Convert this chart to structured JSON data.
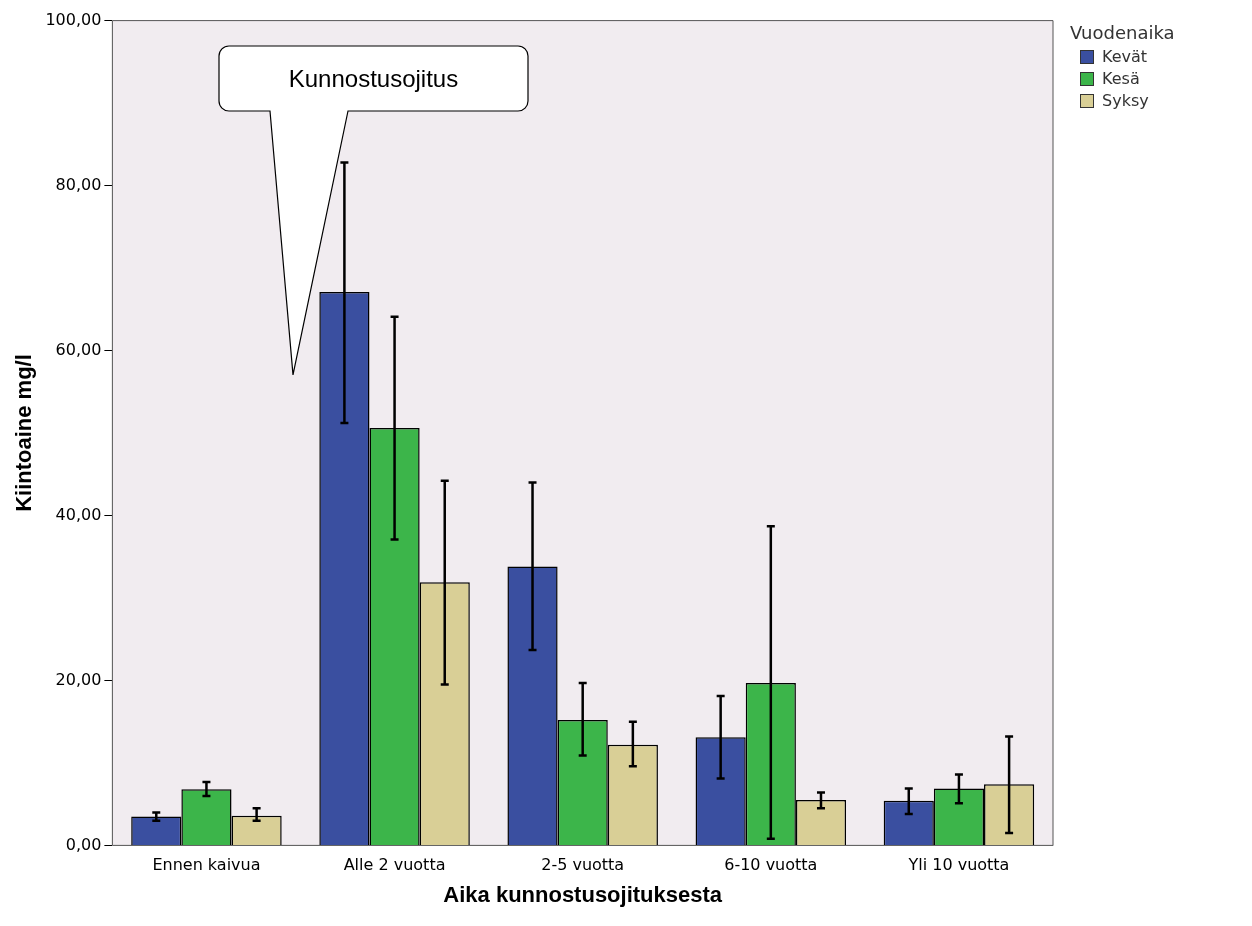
{
  "chart_data": {
    "type": "bar",
    "xlabel": "Aika kunnostusojituksesta",
    "ylabel": "Kiintoaine mg/l",
    "legend_title": "Vuodenaika",
    "categories": [
      "Ennen kaivua",
      "Alle 2 vuotta",
      "2-5 vuotta",
      "6-10 vuotta",
      "Yli 10 vuotta"
    ],
    "series": [
      {
        "name": "Kevät",
        "color": "#3a4fa0",
        "values": [
          3.5,
          67.1,
          33.8,
          13.1,
          5.4
        ],
        "errors": [
          [
            3.0,
            4.0
          ],
          [
            51.2,
            82.8
          ],
          [
            23.7,
            44.0
          ],
          [
            8.1,
            18.1
          ],
          [
            3.8,
            6.9
          ]
        ]
      },
      {
        "name": "Kesä",
        "color": "#3cb54a",
        "values": [
          6.8,
          50.6,
          15.2,
          19.7,
          6.9
        ],
        "errors": [
          [
            6.0,
            7.7
          ],
          [
            37.1,
            64.1
          ],
          [
            10.9,
            19.7
          ],
          [
            0.8,
            38.7
          ],
          [
            5.1,
            8.6
          ]
        ]
      },
      {
        "name": "Syksy",
        "color": "#d9cf96",
        "values": [
          3.6,
          31.9,
          12.2,
          5.5,
          7.4
        ],
        "errors": [
          [
            3.0,
            4.5
          ],
          [
            19.5,
            44.2
          ],
          [
            9.6,
            15.0
          ],
          [
            4.5,
            6.4
          ],
          [
            1.5,
            13.2
          ]
        ]
      }
    ],
    "ylim": [
      0,
      100
    ],
    "yticks": [
      {
        "value": 0,
        "label": "0,00"
      },
      {
        "value": 20,
        "label": "20,00"
      },
      {
        "value": 40,
        "label": "40,00"
      },
      {
        "value": 60,
        "label": "60,00"
      },
      {
        "value": 80,
        "label": "80,00"
      },
      {
        "value": 100,
        "label": "100,00"
      }
    ],
    "annotations": [
      "Kunnostusojitus"
    ],
    "grid": false,
    "legend": "top right"
  }
}
